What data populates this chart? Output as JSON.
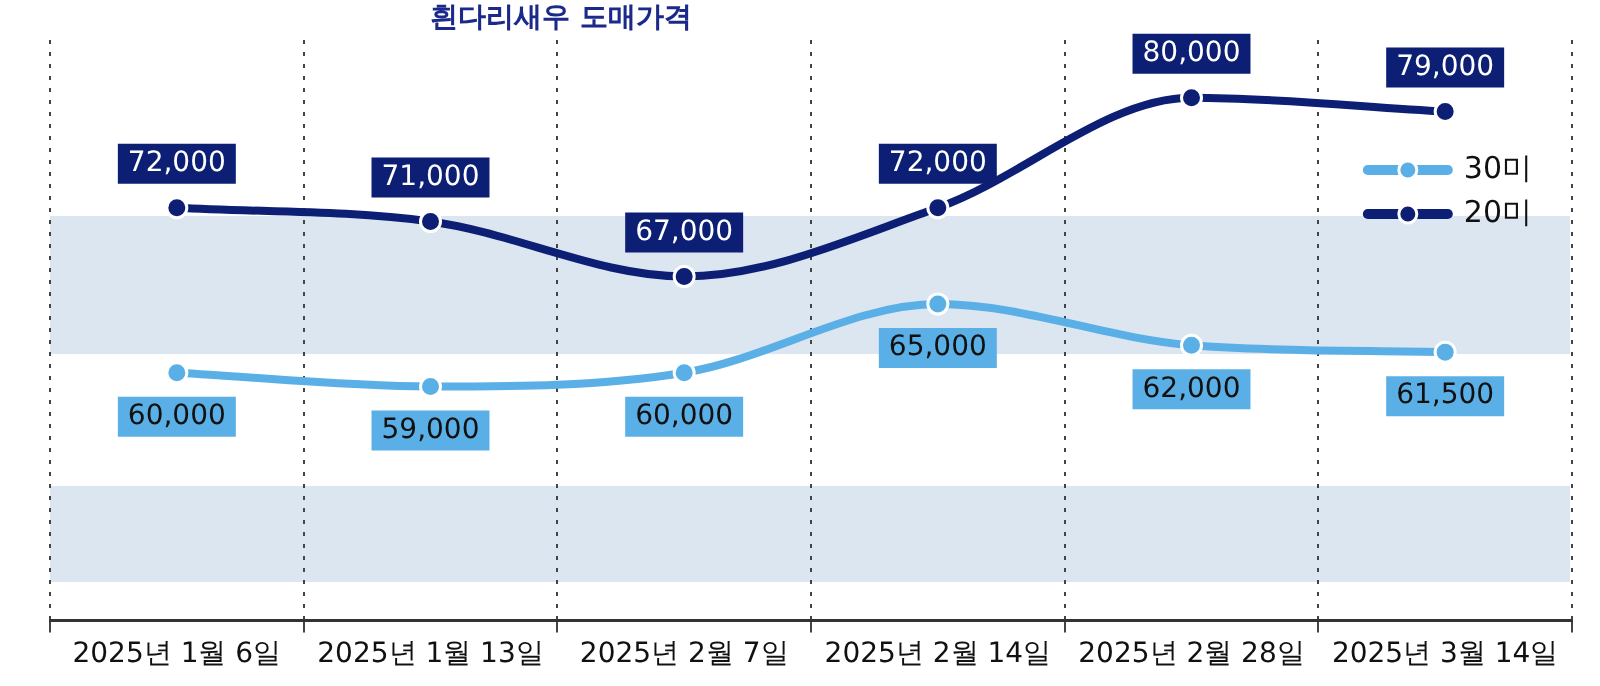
{
  "chart_data": {
    "type": "line",
    "title": "흰다리새우 도매가격",
    "categories": [
      "2025년 1월 6일",
      "2025년 1월 13일",
      "2025년 2월 7일",
      "2025년 2월 14일",
      "2025년 2월 28일",
      "2025년 3월 14일"
    ],
    "series": [
      {
        "name": "30미",
        "color": "#5aafe6",
        "values": [
          60000,
          59000,
          60000,
          65000,
          62000,
          61500
        ],
        "value_labels": [
          "60,000",
          "59,000",
          "60,000",
          "65,000",
          "62,000",
          "61,500"
        ]
      },
      {
        "name": "20미",
        "color": "#0d1f75",
        "values": [
          72000,
          71000,
          67000,
          72000,
          80000,
          79000
        ],
        "value_labels": [
          "72,000",
          "71,000",
          "67,000",
          "72,000",
          "80,000",
          "79,000"
        ]
      }
    ],
    "tick_labels": "x",
    "grid": "x",
    "legend": "top right",
    "marker": "circle",
    "line_style": "solid"
  }
}
